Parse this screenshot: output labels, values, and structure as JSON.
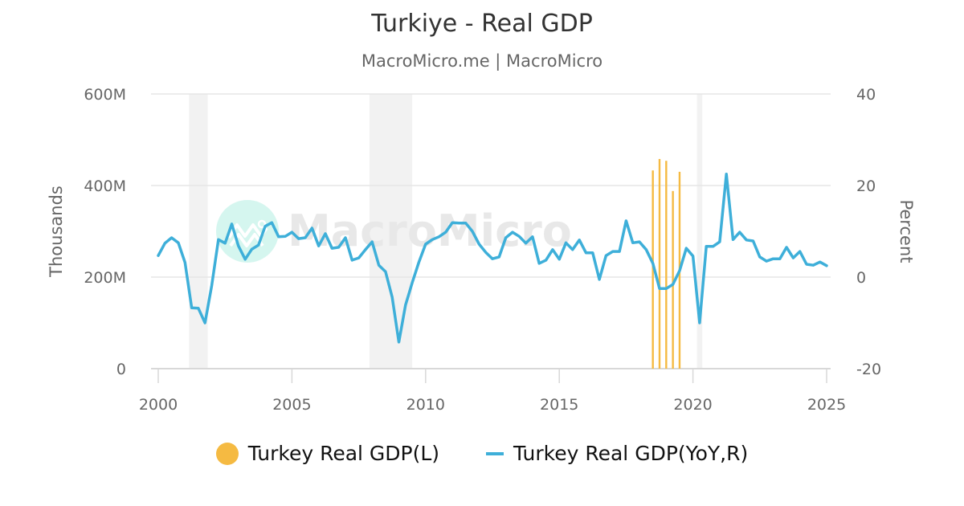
{
  "header": {
    "title": "Turkiye - Real GDP",
    "subtitle": "MacroMicro.me | MacroMicro"
  },
  "watermark": {
    "text": "MacroMicro",
    "icon": "macromicro-logo-icon"
  },
  "colors": {
    "bar": "#F5BA42",
    "line": "#3EAFD9",
    "grid": "#E6E6E6",
    "recession": "#F2F2F2",
    "text": "#666666",
    "watermark_circle": "#D5F6EF"
  },
  "legend": {
    "items": [
      {
        "label": "Turkey Real GDP(L)",
        "marker": "circle",
        "color": "#F5BA42"
      },
      {
        "label": "Turkey Real GDP(YoY,R)",
        "marker": "line",
        "color": "#3EAFD9"
      }
    ]
  },
  "axes": {
    "left": {
      "title": "Thousands",
      "ticks": [
        "0",
        "200M",
        "400M",
        "600M"
      ],
      "range": [
        0,
        600
      ]
    },
    "right": {
      "title": "Percent",
      "ticks": [
        "-20",
        "0",
        "20",
        "40"
      ],
      "range": [
        -20,
        40
      ]
    },
    "x": {
      "ticks": [
        "2000",
        "2005",
        "2010",
        "2015",
        "2020",
        "2025"
      ]
    }
  },
  "chart_data": {
    "type": "line",
    "title": "Turkiye - Real GDP",
    "subtitle": "MacroMicro.me | MacroMicro",
    "xlabel": "",
    "ylabel_left": "Thousands",
    "ylabel_right": "Percent",
    "xlim": [
      2000,
      2025
    ],
    "ylim_left": [
      0,
      600
    ],
    "ylim_right": [
      -20,
      40
    ],
    "grid": true,
    "legend_position": "bottom",
    "recession_bands": [
      [
        2001.15,
        2001.85
      ],
      [
        2007.9,
        2009.5
      ],
      [
        2020.15,
        2020.35
      ]
    ],
    "series": [
      {
        "name": "Turkey Real GDP(L)",
        "type": "bar",
        "axis": "left",
        "unit": "M",
        "x": [
          2018.5,
          2018.75,
          2019.0,
          2019.25,
          2019.5
        ],
        "values": [
          433,
          458,
          454,
          388,
          430
        ]
      },
      {
        "name": "Turkey Real GDP(YoY,R)",
        "type": "line",
        "axis": "right",
        "unit": "%",
        "x_start": 2000.0,
        "x_step": 0.25,
        "values": [
          4.7,
          7.4,
          8.6,
          7.5,
          3.2,
          -6.7,
          -6.8,
          -10.0,
          -1.8,
          8.2,
          7.4,
          11.6,
          6.8,
          3.9,
          6.1,
          7.0,
          11.1,
          11.9,
          8.8,
          8.9,
          9.8,
          8.4,
          8.6,
          10.7,
          6.8,
          9.5,
          6.3,
          6.5,
          8.6,
          3.7,
          4.2,
          6.0,
          7.7,
          2.6,
          1.2,
          -4.4,
          -14.2,
          -6.1,
          -1.2,
          3.3,
          7.2,
          8.2,
          8.8,
          9.8,
          11.9,
          11.8,
          11.8,
          10.0,
          7.2,
          5.4,
          4.0,
          4.4,
          8.6,
          9.8,
          8.9,
          7.4,
          8.8,
          3.0,
          3.7,
          6.0,
          3.9,
          7.5,
          6.0,
          8.1,
          5.3,
          5.3,
          -0.5,
          4.7,
          5.6,
          5.6,
          12.3,
          7.5,
          7.7,
          6.0,
          3.0,
          -2.5,
          -2.5,
          -1.6,
          1.4,
          6.3,
          4.6,
          -10.0,
          6.7,
          6.7,
          7.7,
          22.5,
          8.2,
          9.8,
          8.1,
          7.9,
          4.4,
          3.5,
          4.0,
          4.0,
          6.5,
          4.2,
          5.6,
          2.8,
          2.6,
          3.3,
          2.5
        ]
      }
    ]
  }
}
